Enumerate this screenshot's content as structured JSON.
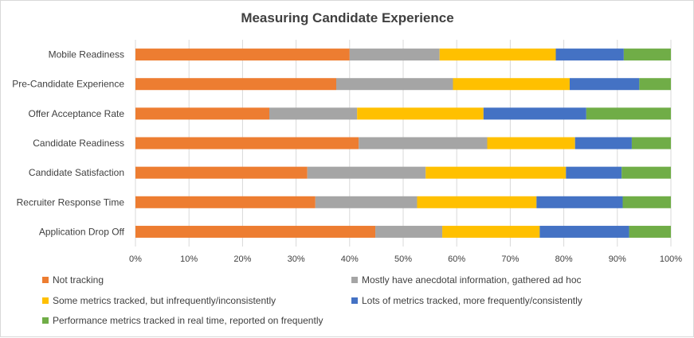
{
  "chart_data": {
    "type": "bar",
    "orientation": "horizontal",
    "stacked": "percent",
    "title": "Measuring Candidate Experience",
    "categories": [
      "Mobile Readiness",
      "Pre-Candidate Experience",
      "Offer Acceptance Rate",
      "Candidate Readiness",
      "Candidate Satisfaction",
      "Recruiter Response Time",
      "Application Drop Off"
    ],
    "series": [
      {
        "name": "Not tracking",
        "color": "#ed7d31",
        "values": [
          40,
          37.5,
          25,
          41.7,
          32.1,
          33.6,
          44.8
        ]
      },
      {
        "name": "Mostly have anecdotal information, gathered ad hoc",
        "color": "#a5a5a5",
        "values": [
          16.8,
          21.8,
          16.4,
          24,
          22.1,
          19,
          12.5
        ]
      },
      {
        "name": "Some metrics tracked, but infrequently/inconsistently",
        "color": "#ffc000",
        "values": [
          21.7,
          21.8,
          23.6,
          16.4,
          26.2,
          22.3,
          18.2
        ]
      },
      {
        "name": "Lots of metrics tracked, more frequently/consistently",
        "color": "#4472c4",
        "values": [
          12.7,
          13,
          19.2,
          10.6,
          10.4,
          16.1,
          16.7
        ]
      },
      {
        "name": "Performance metrics tracked in real time, reported on frequently",
        "color": "#70ad47",
        "values": [
          8.8,
          5.9,
          15.8,
          7.3,
          9.2,
          9.0,
          7.8
        ]
      }
    ],
    "xlim": [
      0,
      100
    ],
    "x_ticks": [
      "0%",
      "10%",
      "20%",
      "30%",
      "40%",
      "50%",
      "60%",
      "70%",
      "80%",
      "90%",
      "100%"
    ],
    "grid": true,
    "legend_position": "bottom",
    "xlabel": "",
    "ylabel": ""
  }
}
